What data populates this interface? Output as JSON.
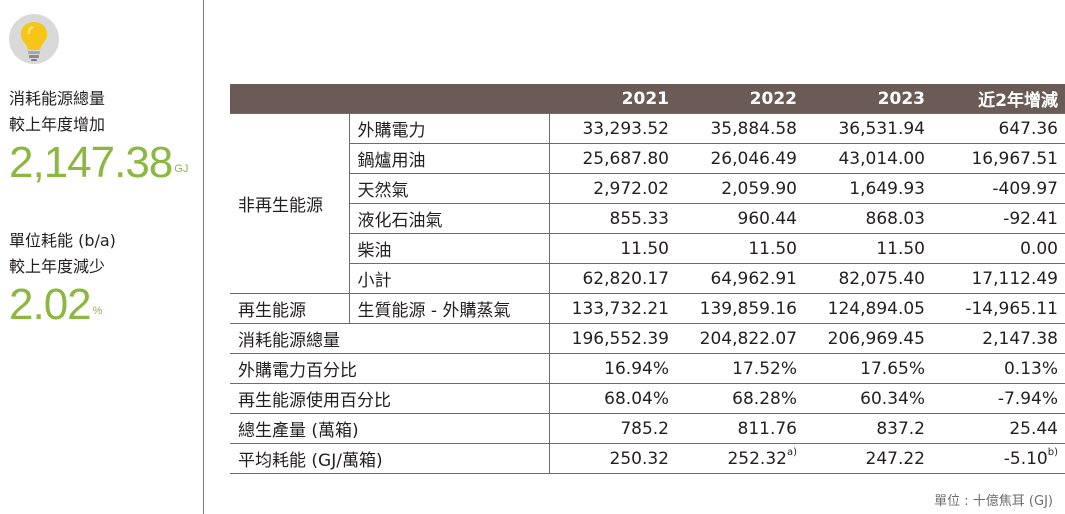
{
  "sidebar": {
    "label1_line1": "消耗能源總量",
    "label1_line2": "較上年度增加",
    "value1": "2,147.38",
    "unit1": "GJ",
    "label2_line1": "單位耗能 (b/a)",
    "label2_line2": "較上年度減少",
    "value2": "2.02",
    "unit2": "%",
    "icon": "lightbulb-icon",
    "accent_color": "#8cb83f"
  },
  "table": {
    "header": [
      "",
      "",
      "2021",
      "2022",
      "2023",
      "近2年增減"
    ],
    "nonrenew_group": "非再生能源",
    "nonrenew_rows": [
      {
        "label": "外購電力",
        "v2021": "33,293.52",
        "v2022": "35,884.58",
        "v2023": "36,531.94",
        "change": "647.36"
      },
      {
        "label": "鍋爐用油",
        "v2021": "25,687.80",
        "v2022": "26,046.49",
        "v2023": "43,014.00",
        "change": "16,967.51"
      },
      {
        "label": "天然氣",
        "v2021": "2,972.02",
        "v2022": "2,059.90",
        "v2023": "1,649.93",
        "change": "-409.97"
      },
      {
        "label": "液化石油氣",
        "v2021": "855.33",
        "v2022": "960.44",
        "v2023": "868.03",
        "change": "-92.41"
      },
      {
        "label": "柴油",
        "v2021": "11.50",
        "v2022": "11.50",
        "v2023": "11.50",
        "change": "0.00"
      },
      {
        "label": "小計",
        "v2021": "62,820.17",
        "v2022": "64,962.91",
        "v2023": "82,075.40",
        "change": "17,112.49"
      }
    ],
    "renew_row": {
      "group": "再生能源",
      "label": "生質能源 - 外購蒸氣",
      "v2021": "133,732.21",
      "v2022": "139,859.16",
      "v2023": "124,894.05",
      "change": "-14,965.11"
    },
    "summary_rows": [
      {
        "label": "消耗能源總量",
        "v2021": "196,552.39",
        "v2022": "204,822.07",
        "v2023": "206,969.45",
        "change": "2,147.38"
      },
      {
        "label": "外購電力百分比",
        "v2021": "16.94%",
        "v2022": "17.52%",
        "v2023": "17.65%",
        "change": "0.13%"
      },
      {
        "label": "再生能源使用百分比",
        "v2021": "68.04%",
        "v2022": "68.28%",
        "v2023": "60.34%",
        "change": "-7.94%"
      },
      {
        "label": "總生產量 (萬箱)",
        "v2021": "785.2",
        "v2022": "811.76",
        "v2023": "837.2",
        "change": "25.44"
      }
    ],
    "avg_row": {
      "label": "平均耗能 (GJ/萬箱)",
      "v2021": "250.32",
      "v2022": "252.32",
      "v2022_note": "a)",
      "v2023": "247.22",
      "change": "-5.10",
      "change_note": "b)"
    },
    "header_color": "#6b5b56"
  },
  "unit_note": "單位 : 十億焦耳 (GJ)"
}
